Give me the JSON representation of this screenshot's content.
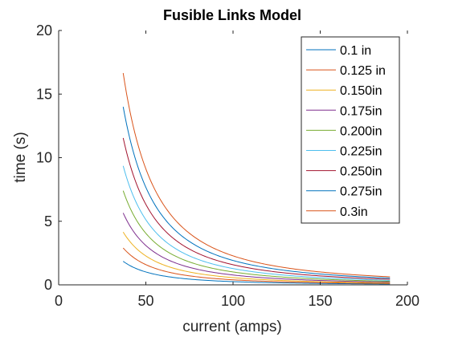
{
  "chart_data": {
    "type": "line",
    "title": "Fusible Links Model",
    "xlabel": "current (amps)",
    "ylabel": "time (s)",
    "xlim": [
      0,
      200
    ],
    "ylim": [
      0,
      20
    ],
    "xticks": [
      0,
      50,
      100,
      150,
      200
    ],
    "yticks": [
      0,
      5,
      10,
      15,
      20
    ],
    "grid": false,
    "legend_position": "top-right",
    "x_range": [
      37,
      190
    ],
    "model": "time = k / current^2",
    "series": [
      {
        "name": "0.1 in",
        "color": "#0072BD",
        "values_at_x_range": [
          1.85,
          0.07
        ]
      },
      {
        "name": "0.125 in",
        "color": "#D95319",
        "values_at_x_range": [
          2.9,
          0.11
        ]
      },
      {
        "name": "0.150in",
        "color": "#EDB120",
        "values_at_x_range": [
          4.15,
          0.16
        ]
      },
      {
        "name": "0.175in",
        "color": "#7E2F8E",
        "values_at_x_range": [
          5.65,
          0.21
        ]
      },
      {
        "name": "0.200in",
        "color": "#77AC30",
        "values_at_x_range": [
          7.4,
          0.28
        ]
      },
      {
        "name": "0.225in",
        "color": "#4DBEEE",
        "values_at_x_range": [
          9.35,
          0.35
        ]
      },
      {
        "name": "0.250in",
        "color": "#A2142F",
        "values_at_x_range": [
          11.55,
          0.44
        ]
      },
      {
        "name": "0.275in",
        "color": "#0072BD",
        "values_at_x_range": [
          14.0,
          0.53
        ]
      },
      {
        "name": "0.3in",
        "color": "#D95319",
        "values_at_x_range": [
          16.65,
          0.63
        ]
      }
    ]
  }
}
